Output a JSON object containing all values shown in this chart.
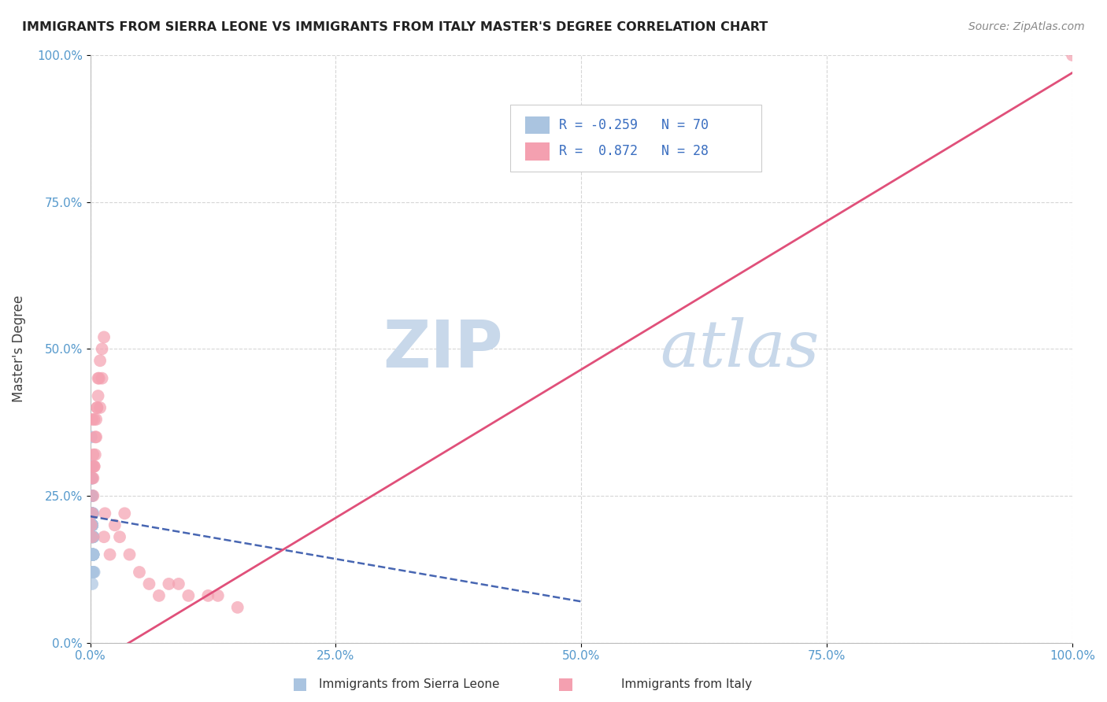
{
  "title": "IMMIGRANTS FROM SIERRA LEONE VS IMMIGRANTS FROM ITALY MASTER'S DEGREE CORRELATION CHART",
  "source": "Source: ZipAtlas.com",
  "ylabel": "Master's Degree",
  "legend_label1": "Immigrants from Sierra Leone",
  "legend_label2": "Immigrants from Italy",
  "R1": -0.259,
  "N1": 70,
  "R2": 0.872,
  "N2": 28,
  "color_sierra": "#aac4e0",
  "color_italy": "#f4a0b0",
  "color_trendline_sierra": "#3355aa",
  "color_trendline_italy": "#e0507a",
  "watermark_zip": "ZIP",
  "watermark_atlas": "atlas",
  "watermark_color": "#c8d8ea",
  "xlim": [
    0,
    1.0
  ],
  "ylim": [
    0,
    1.0
  ],
  "xticks": [
    0.0,
    0.25,
    0.5,
    0.75,
    1.0
  ],
  "yticks": [
    0.0,
    0.25,
    0.5,
    0.75,
    1.0
  ],
  "xtick_labels": [
    "0.0%",
    "25.0%",
    "50.0%",
    "75.0%",
    "100.0%"
  ],
  "ytick_labels": [
    "0.0%",
    "25.0%",
    "50.0%",
    "75.0%",
    "100.0%"
  ],
  "sierra_leone_x": [
    0.001,
    0.002,
    0.003,
    0.002,
    0.001,
    0.001,
    0.002,
    0.003,
    0.002,
    0.001,
    0.002,
    0.002,
    0.001,
    0.002,
    0.003,
    0.003,
    0.004,
    0.002,
    0.001,
    0.002,
    0.001,
    0.001,
    0.002,
    0.003,
    0.002,
    0.002,
    0.001,
    0.003,
    0.002,
    0.002,
    0.001,
    0.001,
    0.002,
    0.002,
    0.003,
    0.003,
    0.002,
    0.001,
    0.002,
    0.002,
    0.003,
    0.003,
    0.001,
    0.002,
    0.002,
    0.001,
    0.001,
    0.002,
    0.003,
    0.003,
    0.002,
    0.001,
    0.002,
    0.002,
    0.003,
    0.003,
    0.002,
    0.001,
    0.002,
    0.001,
    0.001,
    0.002,
    0.003,
    0.002,
    0.002,
    0.001,
    0.001,
    0.003,
    0.002,
    0.002
  ],
  "sierra_leone_y": [
    0.35,
    0.28,
    0.22,
    0.18,
    0.25,
    0.2,
    0.3,
    0.15,
    0.12,
    0.2,
    0.22,
    0.25,
    0.28,
    0.2,
    0.18,
    0.15,
    0.12,
    0.2,
    0.22,
    0.25,
    0.3,
    0.28,
    0.2,
    0.15,
    0.18,
    0.22,
    0.25,
    0.12,
    0.15,
    0.18,
    0.28,
    0.25,
    0.2,
    0.22,
    0.18,
    0.15,
    0.15,
    0.25,
    0.2,
    0.18,
    0.15,
    0.15,
    0.22,
    0.18,
    0.22,
    0.25,
    0.22,
    0.2,
    0.18,
    0.15,
    0.15,
    0.22,
    0.2,
    0.18,
    0.15,
    0.12,
    0.12,
    0.22,
    0.22,
    0.25,
    0.22,
    0.18,
    0.15,
    0.2,
    0.1,
    0.12,
    0.2,
    0.18,
    0.2,
    0.15
  ],
  "italy_x": [
    0.001,
    0.002,
    0.002,
    0.003,
    0.003,
    0.004,
    0.005,
    0.006,
    0.007,
    0.008,
    0.009,
    0.01,
    0.012,
    0.014,
    0.002,
    0.002,
    0.003,
    0.003,
    0.004,
    0.004,
    0.005,
    0.006,
    0.007,
    0.008,
    0.01,
    0.012,
    0.014,
    1.0
  ],
  "italy_y": [
    0.2,
    0.18,
    0.22,
    0.25,
    0.28,
    0.3,
    0.32,
    0.35,
    0.4,
    0.42,
    0.45,
    0.48,
    0.5,
    0.52,
    0.38,
    0.28,
    0.3,
    0.32,
    0.38,
    0.3,
    0.35,
    0.38,
    0.4,
    0.45,
    0.4,
    0.45,
    0.18,
    1.0
  ],
  "italy_x_extra": [
    0.015,
    0.02,
    0.025,
    0.03,
    0.035,
    0.04,
    0.05,
    0.06,
    0.07,
    0.08,
    0.09,
    0.1,
    0.12,
    0.13,
    0.15
  ],
  "italy_y_extra": [
    0.22,
    0.15,
    0.2,
    0.18,
    0.22,
    0.15,
    0.12,
    0.1,
    0.08,
    0.1,
    0.1,
    0.08,
    0.08,
    0.08,
    0.06
  ]
}
